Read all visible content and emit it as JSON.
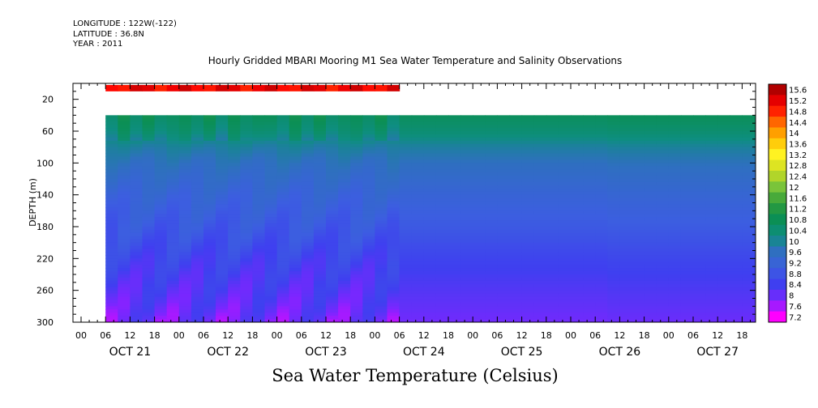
{
  "header": {
    "longitude": "LONGITUDE : 122W(-122)",
    "latitude": "LATITUDE : 36.8N",
    "year": "YEAR : 2011"
  },
  "footer_title": "Sea Water Temperature (Celsius)",
  "chart_data": {
    "type": "heatmap",
    "title": "Hourly Gridded MBARI Mooring M1 Sea Water Temperature and Salinity Observations",
    "ylabel": "DEPTH (m)",
    "xlabel": "",
    "y_axis": {
      "range": [
        0,
        300
      ],
      "inverted": true,
      "ticks": [
        20,
        60,
        100,
        140,
        180,
        220,
        260,
        300
      ]
    },
    "x_axis": {
      "hour_ticks": [
        "00",
        "06",
        "12",
        "18",
        "00",
        "06",
        "12",
        "18",
        "00",
        "06",
        "12",
        "18",
        "00",
        "06",
        "12",
        "18",
        "00",
        "06",
        "12",
        "18",
        "00",
        "06",
        "12",
        "18",
        "00",
        "06",
        "12",
        "18"
      ],
      "day_labels": [
        "OCT 21",
        "OCT 22",
        "OCT 23",
        "OCT 24",
        "OCT 25",
        "OCT 26",
        "OCT 27"
      ]
    },
    "colorbar": {
      "labels": [
        "15.6",
        "15.2",
        "14.8",
        "14.4",
        "14",
        "13.6",
        "13.2",
        "12.8",
        "12.4",
        "12",
        "11.6",
        "11.2",
        "10.8",
        "10.4",
        "10",
        "9.6",
        "9.2",
        "8.8",
        "8.4",
        "8",
        "7.6",
        "7.2"
      ],
      "min": 7.2,
      "max": 15.6,
      "colors": [
        "#ff00ff",
        "#7b26ff",
        "#3f3ff0",
        "#3c5ee0",
        "#2f6fc0",
        "#0e8e80",
        "#0b8f55",
        "#2f9d3a",
        "#7ac43a",
        "#ccdd22",
        "#fff222",
        "#ffbb00",
        "#ff6600",
        "#ff0000",
        "#b10000"
      ]
    },
    "data_extent": {
      "start": "OCT 21 06",
      "end": "OCT 27 24",
      "depth_top": 40,
      "depth_bottom": 300
    },
    "surface_extent": {
      "start": "OCT 21 06",
      "end": "OCT 24 06",
      "depth_top": 2,
      "depth_bottom": 10
    },
    "profile": [
      {
        "depth": 40,
        "temp": 10.7
      },
      {
        "depth": 60,
        "temp": 10.4
      },
      {
        "depth": 80,
        "temp": 9.9
      },
      {
        "depth": 100,
        "temp": 9.6
      },
      {
        "depth": 140,
        "temp": 9.2
      },
      {
        "depth": 180,
        "temp": 8.9
      },
      {
        "depth": 220,
        "temp": 8.5
      },
      {
        "depth": 260,
        "temp": 8.2
      },
      {
        "depth": 300,
        "temp": 7.9
      }
    ],
    "surface_temp": 15.1
  }
}
